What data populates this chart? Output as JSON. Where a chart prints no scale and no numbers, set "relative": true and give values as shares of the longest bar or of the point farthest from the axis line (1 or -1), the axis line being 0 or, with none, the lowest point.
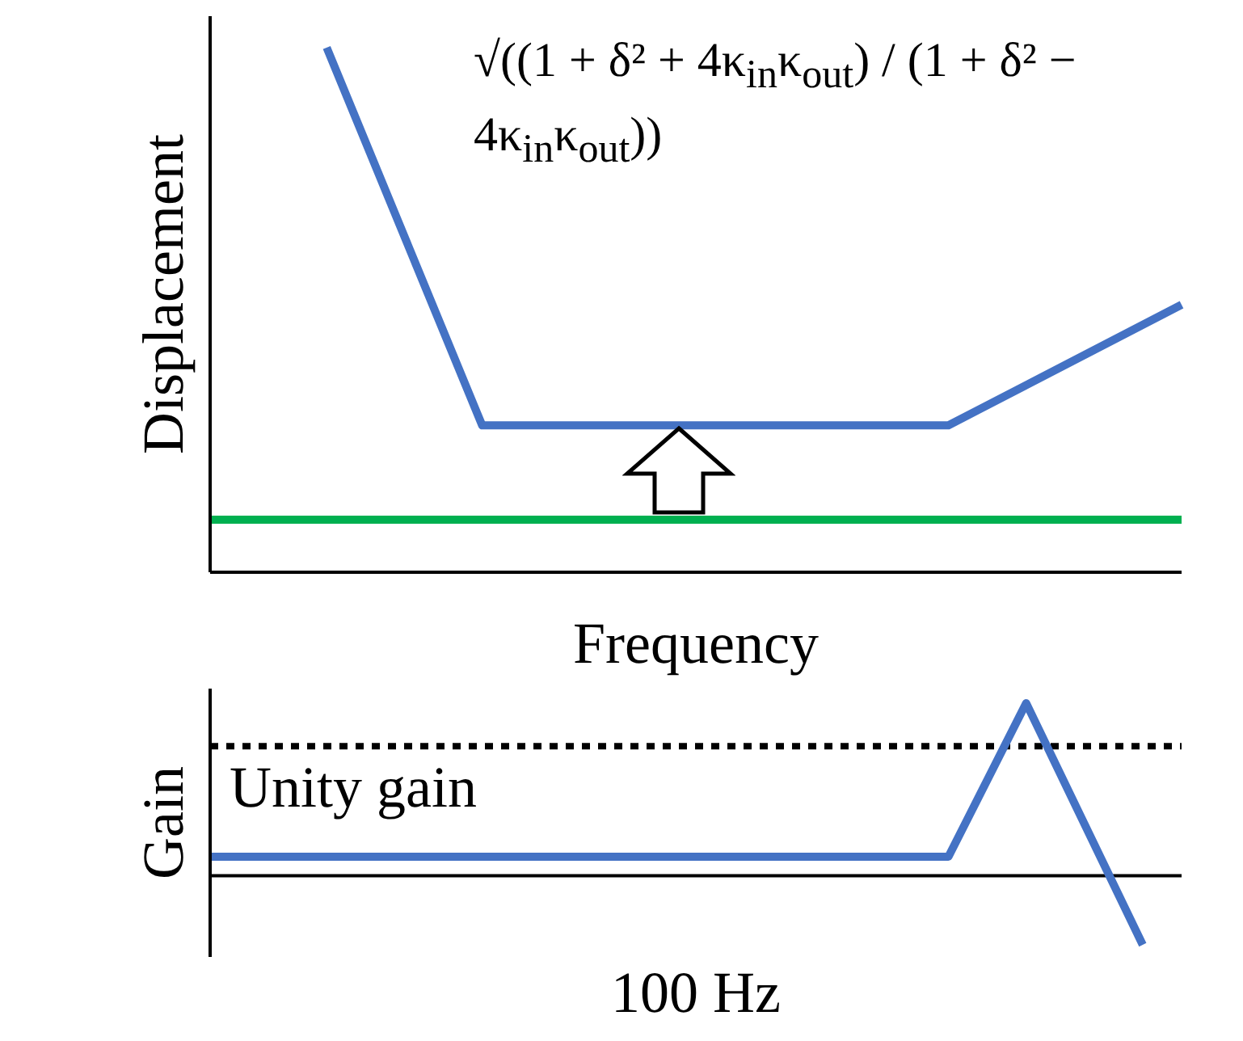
{
  "chart_data": [
    {
      "type": "line",
      "relative": true,
      "xlabel": "Frequency",
      "ylabel": "Displacement",
      "marker": "none",
      "line_style": "solid",
      "categories": [
        null,
        null,
        null,
        null,
        null,
        null,
        null,
        null,
        null,
        null,
        null,
        null,
        null,
        null,
        null,
        null,
        null,
        null,
        null,
        null,
        null,
        null,
        null,
        null,
        null,
        null
      ],
      "series": [
        {
          "color": "#4472c4",
          "values": [
            null,
            null,
            null,
            1,
            null,
            null,
            null,
            0.28,
            null,
            null,
            null,
            null,
            null,
            null,
            null,
            null,
            null,
            null,
            null,
            0.28,
            null,
            null,
            null,
            null,
            null,
            0.51
          ]
        },
        {
          "color": "#00b050",
          "values": [
            0.1,
            0.1,
            0.1,
            0.1,
            0.1,
            0.1,
            0.1,
            0.1,
            0.1,
            0.1,
            0.1,
            0.1,
            0.1,
            0.1,
            0.1,
            0.1,
            0.1,
            0.1,
            0.1,
            0.1,
            0.1,
            0.1,
            0.1,
            0.1,
            0.1,
            0.1
          ]
        }
      ],
      "annotations": [
        "√((1 + δ² + 4κ$_{in}$κ$_{out}$) / (1 + δ² − 4κ$_{in}$κ$_{out}$))"
      ]
    },
    {
      "type": "line",
      "relative": true,
      "xlabel": "100 Hz",
      "ylabel": "Gain",
      "marker": "none",
      "line_style": "solid",
      "categories": [
        null,
        null,
        null,
        null,
        null,
        null,
        null,
        null,
        null,
        null,
        null,
        null,
        null,
        null,
        null,
        null,
        null,
        null,
        null,
        null,
        null,
        null,
        null,
        null,
        null,
        null
      ],
      "series": [
        {
          "color": "#4472c4",
          "values": [
            0.11,
            null,
            null,
            null,
            null,
            null,
            null,
            null,
            null,
            null,
            null,
            null,
            null,
            null,
            null,
            null,
            null,
            null,
            null,
            0.11,
            null,
            1,
            null,
            null,
            -0.4,
            null
          ]
        }
      ],
      "ref_lines": [
        {
          "axis": "y",
          "value": 0.75,
          "label": "Unity gain",
          "color": "#000000",
          "line_style": "dotted"
        }
      ]
    }
  ]
}
